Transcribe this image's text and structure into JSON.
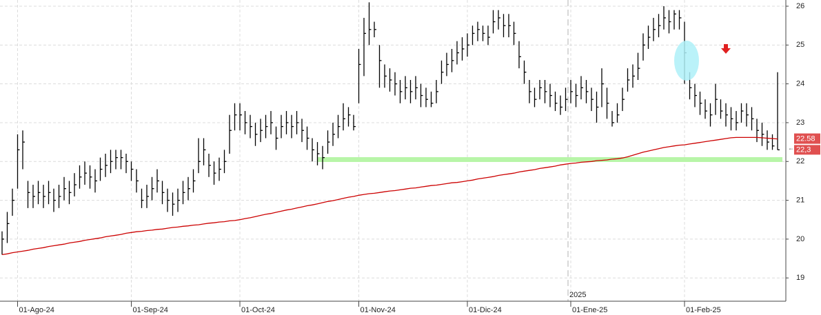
{
  "chart_data": {
    "type": "ohlc",
    "categories": [
      null,
      null,
      null,
      "01-Ago-24",
      null,
      null,
      null,
      null,
      null,
      null,
      null,
      null,
      null,
      null,
      null,
      null,
      null,
      null,
      null,
      null,
      null,
      null,
      null,
      null,
      null,
      "01-Sep-24",
      null,
      null,
      null,
      null,
      null,
      null,
      null,
      null,
      null,
      null,
      null,
      null,
      null,
      null,
      null,
      null,
      null,
      null,
      null,
      null,
      "01-Oct-24",
      null,
      null,
      null,
      null,
      null,
      null,
      null,
      null,
      null,
      null,
      null,
      null,
      null,
      null,
      null,
      null,
      null,
      null,
      null,
      null,
      null,
      null,
      "01-Nov-24",
      null,
      null,
      null,
      null,
      null,
      null,
      null,
      null,
      null,
      null,
      null,
      null,
      null,
      null,
      null,
      null,
      null,
      null,
      null,
      null,
      "01-Dic-24",
      null,
      null,
      null,
      null,
      null,
      null,
      null,
      null,
      null,
      null,
      null,
      null,
      null,
      null,
      null,
      null,
      null,
      null,
      null,
      "01-Ene-25",
      null,
      null,
      null,
      null,
      null,
      null,
      null,
      null,
      null,
      null,
      null,
      null,
      null,
      null,
      null,
      null,
      null,
      null,
      null,
      null,
      null,
      "01-Feb-25",
      null,
      null,
      null,
      null,
      null,
      null,
      null,
      null,
      null,
      null,
      null,
      null,
      null,
      null,
      null,
      null,
      null,
      null
    ],
    "ohlc": {
      "color": "#000000",
      "high": [
        20.2,
        20.7,
        21.3,
        22.7,
        22.8,
        21.5,
        21.4,
        21.5,
        21.4,
        21.5,
        21.3,
        21.4,
        21.6,
        21.5,
        21.7,
        21.9,
        22.0,
        21.9,
        21.8,
        22.1,
        22.2,
        22.3,
        22.3,
        22.3,
        22.2,
        22.0,
        21.8,
        21.3,
        21.4,
        21.6,
        21.8,
        21.5,
        21.3,
        21.2,
        21.3,
        21.5,
        21.6,
        21.8,
        22.6,
        22.6,
        22.2,
        22.0,
        22.1,
        22.3,
        23.2,
        23.5,
        23.5,
        23.3,
        23.2,
        23.0,
        23.1,
        23.2,
        23.3,
        22.9,
        23.2,
        23.3,
        23.2,
        23.3,
        23.1,
        22.9,
        22.6,
        22.5,
        22.4,
        22.8,
        23.0,
        23.2,
        23.5,
        23.4,
        23.2,
        24.9,
        25.7,
        26.1,
        25.6,
        25.0,
        24.5,
        24.4,
        24.3,
        24.1,
        24.2,
        24.1,
        24.2,
        24.0,
        23.9,
        23.8,
        24.1,
        24.6,
        24.8,
        24.9,
        25.1,
        25.2,
        25.3,
        25.5,
        25.6,
        25.5,
        25.5,
        25.9,
        25.9,
        25.8,
        25.8,
        25.6,
        25.1,
        24.6,
        24.1,
        23.9,
        24.1,
        24.1,
        24.0,
        23.8,
        23.7,
        23.9,
        24.1,
        24.0,
        24.2,
        24.1,
        23.9,
        23.8,
        24.4,
        23.9,
        23.3,
        23.5,
        23.9,
        24.4,
        24.5,
        24.8,
        25.3,
        25.5,
        25.7,
        25.8,
        26.0,
        25.9,
        25.9,
        25.9,
        25.6,
        24.3,
        24.0,
        23.8,
        23.6,
        23.5,
        24.0,
        23.6,
        23.5,
        23.4,
        23.3,
        23.5,
        23.5,
        23.4,
        23.1,
        23.0,
        22.8,
        22.7,
        24.3
      ],
      "low": [
        19.6,
        19.9,
        20.6,
        21.3,
        21.8,
        20.8,
        20.8,
        20.9,
        20.8,
        20.9,
        20.7,
        20.8,
        21.0,
        20.9,
        21.1,
        21.3,
        21.4,
        21.3,
        21.2,
        21.5,
        21.6,
        21.7,
        21.8,
        21.8,
        21.7,
        21.5,
        21.2,
        20.8,
        20.8,
        21.0,
        21.2,
        20.9,
        20.7,
        20.6,
        20.7,
        20.9,
        21.0,
        21.2,
        21.7,
        21.9,
        21.6,
        21.4,
        21.5,
        21.7,
        22.2,
        22.8,
        22.8,
        22.7,
        22.6,
        22.4,
        22.5,
        22.6,
        22.7,
        22.3,
        22.6,
        22.7,
        22.6,
        22.7,
        22.5,
        22.3,
        22.0,
        21.9,
        21.8,
        22.2,
        22.4,
        22.6,
        22.8,
        22.9,
        22.8,
        23.5,
        24.2,
        25.0,
        25.2,
        23.9,
        23.9,
        23.8,
        23.7,
        23.5,
        23.6,
        23.5,
        23.6,
        23.4,
        23.4,
        23.4,
        23.5,
        24.0,
        24.2,
        24.3,
        24.5,
        24.6,
        24.7,
        25.0,
        25.1,
        25.1,
        25.0,
        25.3,
        25.4,
        25.2,
        25.2,
        25.0,
        24.4,
        24.0,
        23.5,
        23.4,
        23.6,
        23.5,
        23.4,
        23.3,
        23.2,
        23.3,
        23.5,
        23.4,
        23.6,
        23.5,
        23.3,
        23.0,
        23.4,
        23.1,
        22.9,
        23.0,
        23.3,
        23.8,
        23.9,
        24.1,
        24.6,
        24.9,
        25.1,
        25.2,
        25.4,
        25.3,
        25.4,
        25.4,
        24.0,
        23.6,
        23.4,
        23.2,
        23.1,
        22.9,
        23.2,
        23.1,
        22.9,
        22.8,
        22.8,
        23.0,
        22.9,
        22.8,
        22.5,
        22.4,
        22.3,
        22.3,
        22.3
      ],
      "close": [
        20.0,
        20.4,
        21.0,
        22.3,
        22.5,
        21.2,
        21.1,
        21.2,
        21.1,
        21.2,
        21.0,
        21.1,
        21.3,
        21.2,
        21.4,
        21.6,
        21.7,
        21.6,
        21.5,
        21.8,
        21.9,
        22.0,
        22.1,
        22.1,
        22.0,
        21.8,
        21.5,
        21.0,
        21.1,
        21.3,
        21.5,
        21.2,
        21.0,
        20.9,
        21.0,
        21.2,
        21.3,
        21.5,
        22.0,
        22.3,
        21.9,
        21.7,
        21.8,
        22.0,
        22.8,
        23.2,
        23.2,
        23.0,
        22.9,
        22.7,
        22.8,
        22.9,
        23.0,
        22.6,
        22.9,
        23.0,
        22.9,
        23.0,
        22.8,
        22.6,
        22.3,
        22.2,
        22.1,
        22.5,
        22.7,
        22.9,
        23.1,
        23.2,
        22.9,
        24.5,
        25.3,
        25.4,
        25.4,
        24.6,
        24.2,
        24.1,
        24.0,
        23.8,
        23.9,
        23.8,
        23.9,
        23.7,
        23.6,
        23.5,
        23.8,
        24.3,
        24.5,
        24.6,
        24.8,
        24.9,
        25.0,
        25.3,
        25.4,
        25.3,
        25.2,
        25.6,
        25.7,
        25.5,
        25.5,
        25.3,
        24.7,
        24.3,
        23.8,
        23.6,
        23.9,
        23.8,
        23.7,
        23.5,
        23.4,
        23.6,
        23.8,
        23.7,
        23.9,
        23.8,
        23.6,
        23.4,
        24.0,
        23.5,
        23.0,
        23.2,
        23.6,
        24.1,
        24.2,
        24.4,
        25.0,
        25.2,
        25.4,
        25.5,
        25.7,
        25.6,
        25.8,
        25.7,
        24.8,
        23.9,
        23.7,
        23.5,
        23.3,
        23.2,
        23.6,
        23.3,
        23.2,
        23.1,
        23.0,
        23.3,
        23.2,
        23.1,
        22.8,
        22.7,
        22.5,
        22.4,
        22.3
      ]
    },
    "moving_average": {
      "color": "#cc0000",
      "values": [
        19.6,
        19.62,
        19.65,
        19.67,
        19.69,
        19.71,
        19.74,
        19.76,
        19.78,
        19.81,
        19.83,
        19.85,
        19.87,
        19.9,
        19.92,
        19.94,
        19.97,
        19.99,
        20.01,
        20.03,
        20.06,
        20.08,
        20.1,
        20.12,
        20.15,
        20.17,
        20.19,
        20.2,
        20.22,
        20.23,
        20.25,
        20.26,
        20.28,
        20.3,
        20.31,
        20.33,
        20.34,
        20.36,
        20.37,
        20.39,
        20.41,
        20.42,
        20.44,
        20.45,
        20.47,
        20.48,
        20.5,
        20.53,
        20.55,
        20.58,
        20.61,
        20.64,
        20.66,
        20.69,
        20.72,
        20.75,
        20.77,
        20.8,
        20.83,
        20.86,
        20.88,
        20.91,
        20.94,
        20.97,
        20.99,
        21.02,
        21.05,
        21.08,
        21.1,
        21.13,
        21.15,
        21.17,
        21.18,
        21.2,
        21.22,
        21.24,
        21.25,
        21.27,
        21.29,
        21.31,
        21.32,
        21.34,
        21.36,
        21.38,
        21.39,
        21.41,
        21.43,
        21.45,
        21.46,
        21.48,
        21.5,
        21.52,
        21.55,
        21.57,
        21.59,
        21.61,
        21.64,
        21.66,
        21.68,
        21.7,
        21.73,
        21.75,
        21.77,
        21.79,
        21.82,
        21.84,
        21.86,
        21.88,
        21.91,
        21.93,
        21.95,
        21.96,
        21.98,
        21.99,
        22.0,
        22.02,
        22.03,
        22.04,
        22.06,
        22.07,
        22.09,
        22.12,
        22.16,
        22.2,
        22.24,
        22.27,
        22.3,
        22.33,
        22.36,
        22.38,
        22.4,
        22.42,
        22.43,
        22.45,
        22.47,
        22.49,
        22.51,
        22.53,
        22.55,
        22.57,
        22.59,
        22.61,
        22.62,
        22.62,
        22.62,
        22.62,
        22.62,
        22.61,
        22.6,
        22.59,
        22.58
      ]
    },
    "support": {
      "value": 22.05,
      "color": "#b8f5a8"
    },
    "year_label": "2025",
    "last_price": {
      "value": 22.3,
      "label": "22,3"
    },
    "ylim": [
      18.4,
      26.16
    ],
    "yticks": [
      19,
      20,
      21,
      22,
      23,
      24,
      25,
      26
    ],
    "grid": true
  }
}
